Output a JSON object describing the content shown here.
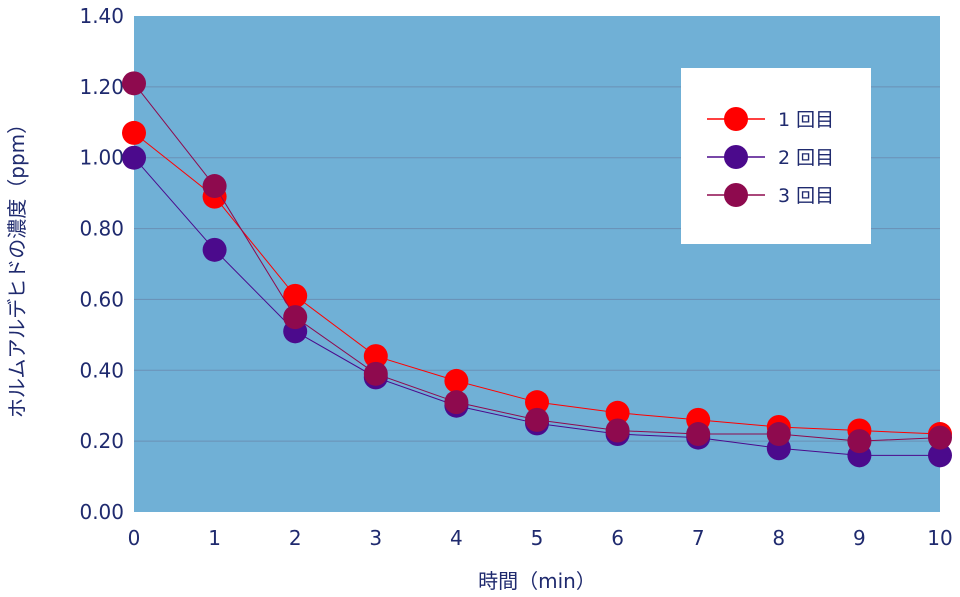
{
  "chart_data": {
    "type": "line",
    "title": "",
    "xlabel": "時間（min）",
    "ylabel": "ホルムアルデヒドの濃度（ppm）",
    "x": [
      0,
      1,
      2,
      3,
      4,
      5,
      6,
      7,
      8,
      9,
      10
    ],
    "x_tick_labels": [
      "0",
      "1",
      "2",
      "3",
      "4",
      "5",
      "6",
      "7",
      "8",
      "9",
      "10"
    ],
    "y_tick_labels": [
      "0.00",
      "0.20",
      "0.40",
      "0.60",
      "0.80",
      "1.00",
      "1.20",
      "1.40"
    ],
    "xlim": [
      0,
      10
    ],
    "ylim": [
      0,
      1.4
    ],
    "grid": "horizontal",
    "legend_position": "top-right",
    "plot_background": "#70b0d6",
    "series": [
      {
        "name": "1 回目",
        "color": "#ff0000",
        "values": [
          1.07,
          0.89,
          0.61,
          0.44,
          0.37,
          0.31,
          0.28,
          0.26,
          0.24,
          0.23,
          0.22
        ]
      },
      {
        "name": "2 回目",
        "color": "#4b0a8c",
        "values": [
          1.0,
          0.74,
          0.51,
          0.38,
          0.3,
          0.25,
          0.22,
          0.21,
          0.18,
          0.16,
          0.16
        ]
      },
      {
        "name": "3 回目",
        "color": "#8e0a4e",
        "values": [
          1.21,
          0.92,
          0.55,
          0.39,
          0.31,
          0.26,
          0.23,
          0.22,
          0.22,
          0.2,
          0.21
        ]
      }
    ]
  }
}
